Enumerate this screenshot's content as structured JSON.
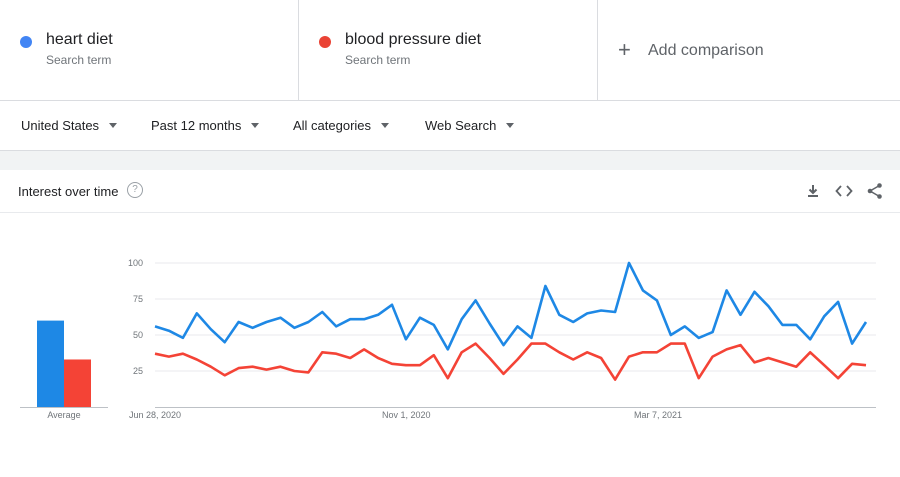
{
  "terms": [
    {
      "name": "heart diet",
      "sub": "Search term",
      "color": "#4285f4"
    },
    {
      "name": "blood pressure diet",
      "sub": "Search term",
      "color": "#ea4335"
    }
  ],
  "add_comparison": "Add comparison",
  "filters": {
    "region": "United States",
    "period": "Past 12 months",
    "category": "All categories",
    "property": "Web Search"
  },
  "card": {
    "title": "Interest over time",
    "help": "?",
    "icons": [
      "download-icon",
      "embed-icon",
      "share-icon"
    ]
  },
  "chart_data": {
    "type": "line",
    "xlabels": [
      "Jun 28, 2020",
      "Nov 1, 2020",
      "Mar 7, 2021"
    ],
    "yticks": [
      25,
      50,
      75,
      100
    ],
    "ylim": [
      0,
      100
    ],
    "average_label": "Average",
    "averages": [
      60,
      33
    ],
    "series": [
      {
        "name": "heart diet",
        "color": "#1e88e5",
        "values": [
          56,
          53,
          48,
          65,
          54,
          45,
          59,
          55,
          59,
          62,
          55,
          59,
          66,
          56,
          61,
          61,
          64,
          71,
          47,
          62,
          57,
          40,
          61,
          74,
          58,
          43,
          56,
          48,
          84,
          64,
          59,
          65,
          67,
          66,
          100,
          81,
          74,
          50,
          56,
          48,
          52,
          81,
          64,
          80,
          70,
          57,
          57,
          47,
          63,
          73,
          44,
          59
        ]
      },
      {
        "name": "blood pressure diet",
        "color": "#f44336",
        "values": [
          37,
          35,
          37,
          33,
          28,
          22,
          27,
          28,
          26,
          28,
          25,
          24,
          38,
          37,
          34,
          40,
          34,
          30,
          29,
          29,
          36,
          20,
          38,
          44,
          34,
          23,
          33,
          44,
          44,
          38,
          33,
          38,
          34,
          19,
          35,
          38,
          38,
          44,
          44,
          20,
          35,
          40,
          43,
          31,
          34,
          31,
          28,
          38,
          29,
          20,
          30,
          29
        ]
      }
    ]
  }
}
